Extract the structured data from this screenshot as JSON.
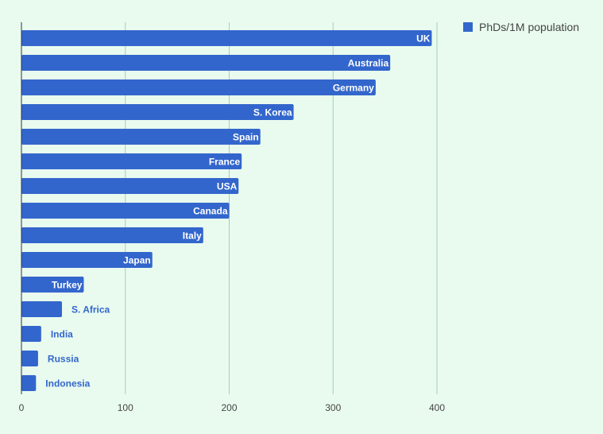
{
  "chart_data": {
    "type": "bar",
    "orientation": "horizontal",
    "title": "",
    "xlabel": "",
    "ylabel": "",
    "xlim": [
      0,
      400
    ],
    "x_ticks": [
      0,
      100,
      200,
      300,
      400
    ],
    "grid": true,
    "legend_position": "top-right",
    "series": [
      {
        "name": "PhDs/1M population",
        "color": "#3366cc",
        "values": [
          395,
          355,
          341,
          262,
          230,
          212,
          209,
          200,
          175,
          126,
          60,
          39,
          19,
          16,
          14
        ]
      }
    ],
    "categories": [
      "UK",
      "Australia",
      "Germany",
      "S. Korea",
      "Spain",
      "France",
      "USA",
      "Canada",
      "Italy",
      "Japan",
      "Turkey",
      "S. Africa",
      "India",
      "Russia",
      "Indonesia"
    ]
  },
  "colors": {
    "background": "#e9fbef",
    "bar": "#3366cc",
    "gridline": "#a9cdb6",
    "axis": "#333333",
    "label_inside": "#ffffff",
    "label_outside": "#3366cc"
  }
}
